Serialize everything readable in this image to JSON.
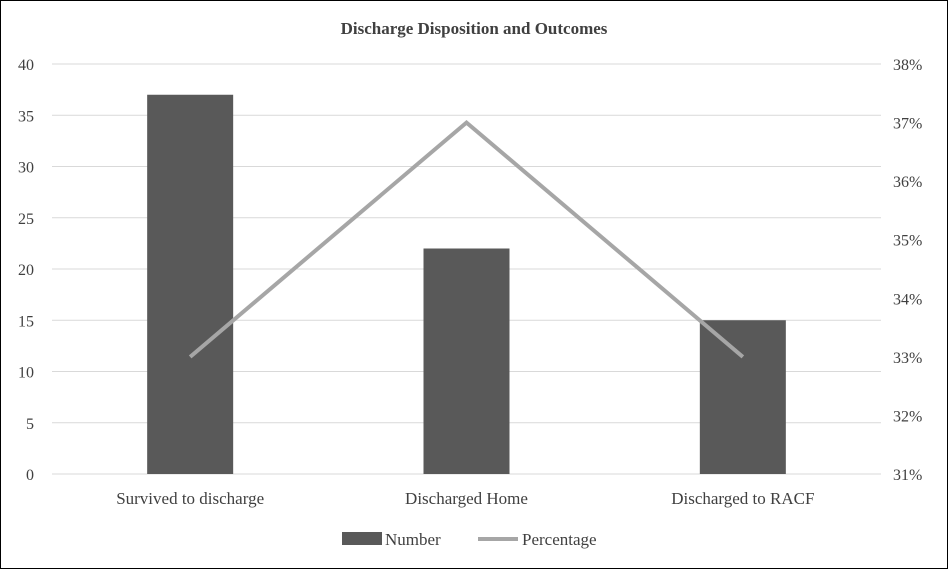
{
  "chart_data": {
    "type": "bar",
    "title": "Discharge Disposition  and Outcomes",
    "categories": [
      "Survived to discharge",
      "Discharged Home",
      "Discharged to RACF"
    ],
    "series": [
      {
        "name": "Number",
        "type": "bar",
        "axis": "left",
        "values": [
          37,
          22,
          15
        ],
        "color": "#595959"
      },
      {
        "name": "Percentage",
        "type": "line",
        "axis": "right",
        "values": [
          0.33,
          0.37,
          0.33
        ],
        "color": "#a6a6a6"
      }
    ],
    "y_left": {
      "lim": [
        0,
        40
      ],
      "ticks": [
        "0",
        "5",
        "10",
        "15",
        "20",
        "25",
        "30",
        "35",
        "40"
      ]
    },
    "y_right": {
      "lim": [
        0.31,
        0.38
      ],
      "ticks": [
        "31%",
        "32%",
        "33%",
        "34%",
        "35%",
        "36%",
        "37%",
        "38%"
      ]
    },
    "grid": true,
    "legend_position": "bottom"
  }
}
